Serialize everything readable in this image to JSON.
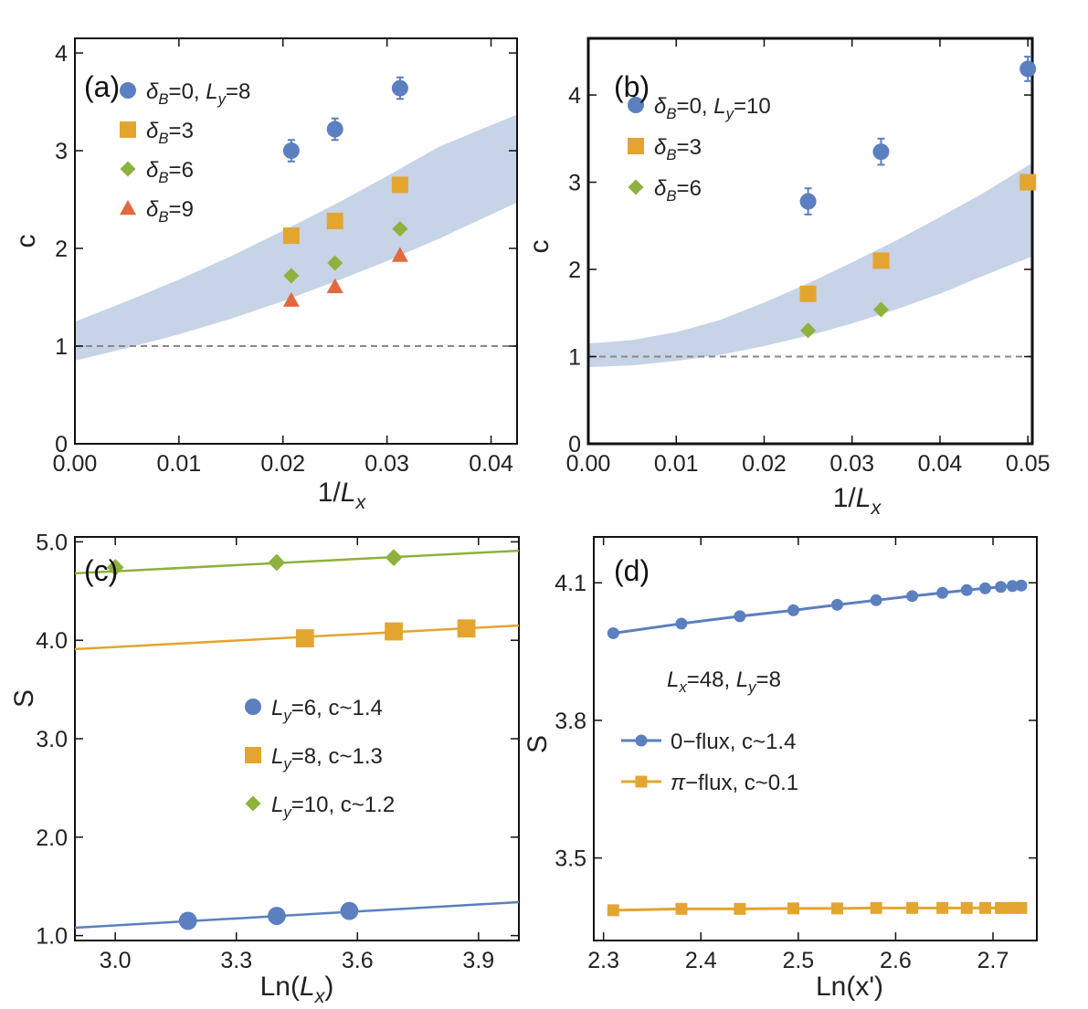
{
  "colors": {
    "blue": "#5b7fbf",
    "orange": "#e3a530",
    "green": "#8fb13d",
    "red": "#e2683e",
    "band": "#c7d3e6",
    "dash": "#888888",
    "axis": "#111111"
  },
  "chart_data": [
    {
      "id": "a",
      "type": "scatter",
      "tag": "(a)",
      "xlabel": "1/L_x",
      "ylabel": "c",
      "xlim": [
        0,
        0.0425
      ],
      "ylim": [
        0,
        4.15
      ],
      "xticks": [
        0.0,
        0.01,
        0.02,
        0.03,
        0.04
      ],
      "xtick_labels": [
        "0.00",
        "0.01",
        "0.02",
        "0.03",
        "0.04"
      ],
      "yticks": [
        0,
        1,
        2,
        3,
        4
      ],
      "ytick_labels": [
        "0",
        "1",
        "2",
        "3",
        "4"
      ],
      "reference_line": {
        "y": 1,
        "style": "dashed"
      },
      "band": {
        "x": [
          0,
          0.005,
          0.01,
          0.015,
          0.02,
          0.025,
          0.03,
          0.035,
          0.0425
        ],
        "lower": [
          0.85,
          0.98,
          1.12,
          1.28,
          1.46,
          1.66,
          1.87,
          2.1,
          2.47
        ],
        "upper": [
          1.25,
          1.46,
          1.68,
          1.92,
          2.18,
          2.45,
          2.74,
          3.04,
          3.37
        ]
      },
      "series": [
        {
          "name": "δB=0, Ly=8",
          "legend": {
            "lead": "δ",
            "sub": "B",
            "mid": "=0, ",
            "lead2": "L",
            "sub2": "y",
            "tail": "=8"
          },
          "marker": "circle",
          "color": "#5b7fbf",
          "x": [
            0.0208,
            0.025,
            0.03125
          ],
          "y": [
            3.0,
            3.22,
            3.64
          ],
          "yerr": [
            0.11,
            0.11,
            0.11
          ]
        },
        {
          "name": "δB=3",
          "legend": {
            "lead": "δ",
            "sub": "B",
            "tail": "=3"
          },
          "marker": "square",
          "color": "#e3a530",
          "x": [
            0.0208,
            0.025,
            0.03125
          ],
          "y": [
            2.13,
            2.28,
            2.65
          ]
        },
        {
          "name": "δB=6",
          "legend": {
            "lead": "δ",
            "sub": "B",
            "tail": "=6"
          },
          "marker": "diamond",
          "color": "#8fb13d",
          "x": [
            0.0208,
            0.025,
            0.03125
          ],
          "y": [
            1.72,
            1.85,
            2.2
          ]
        },
        {
          "name": "δB=9",
          "legend": {
            "lead": "δ",
            "sub": "B",
            "tail": "=9"
          },
          "marker": "triangle",
          "color": "#e2683e",
          "x": [
            0.0208,
            0.025,
            0.03125
          ],
          "y": [
            1.47,
            1.61,
            1.93
          ]
        }
      ]
    },
    {
      "id": "b",
      "type": "scatter",
      "tag": "(b)",
      "xlabel": "1/L_x",
      "ylabel": "c",
      "xlim": [
        0,
        0.0505
      ],
      "ylim": [
        0,
        4.65
      ],
      "xticks": [
        0.0,
        0.01,
        0.02,
        0.03,
        0.04,
        0.05
      ],
      "xtick_labels": [
        "0.00",
        "0.01",
        "0.02",
        "0.03",
        "0.04",
        "0.05"
      ],
      "yticks": [
        0,
        1,
        2,
        3,
        4
      ],
      "ytick_labels": [
        "0",
        "1",
        "2",
        "3",
        "4"
      ],
      "reference_line": {
        "y": 1,
        "style": "dashed"
      },
      "band": {
        "x": [
          0,
          0.005,
          0.01,
          0.015,
          0.02,
          0.025,
          0.03,
          0.035,
          0.04,
          0.045,
          0.0505
        ],
        "lower": [
          0.88,
          0.9,
          0.95,
          1.02,
          1.12,
          1.24,
          1.38,
          1.54,
          1.72,
          1.93,
          2.15
        ],
        "upper": [
          1.15,
          1.19,
          1.28,
          1.42,
          1.62,
          1.84,
          2.08,
          2.33,
          2.6,
          2.88,
          3.22
        ]
      },
      "series": [
        {
          "name": "δB=0, Ly=10",
          "legend": {
            "lead": "δ",
            "sub": "B",
            "mid": "=0, ",
            "lead2": "L",
            "sub2": "y",
            "tail": "=10"
          },
          "marker": "circle",
          "color": "#5b7fbf",
          "x": [
            0.025,
            0.0333,
            0.05
          ],
          "y": [
            2.78,
            3.35,
            4.3
          ],
          "yerr": [
            0.15,
            0.15,
            0.14
          ]
        },
        {
          "name": "δB=3",
          "legend": {
            "lead": "δ",
            "sub": "B",
            "tail": "=3"
          },
          "marker": "square",
          "color": "#e3a530",
          "x": [
            0.025,
            0.0333,
            0.05
          ],
          "y": [
            1.72,
            2.1,
            3.0
          ]
        },
        {
          "name": "δB=6",
          "legend": {
            "lead": "δ",
            "sub": "B",
            "tail": "=6"
          },
          "marker": "diamond",
          "color": "#8fb13d",
          "x": [
            0.025,
            0.0333
          ],
          "y": [
            1.3,
            1.54
          ]
        }
      ]
    },
    {
      "id": "c",
      "type": "scatter",
      "tag": "(c)",
      "xlabel": "Ln(L_x)",
      "ylabel": "S",
      "xlim": [
        2.9,
        4.0
      ],
      "ylim": [
        0.95,
        5.05
      ],
      "xticks": [
        3.0,
        3.3,
        3.6,
        3.9
      ],
      "xtick_labels": [
        "3.0",
        "3.3",
        "3.6",
        "3.9"
      ],
      "yticks": [
        1.0,
        2.0,
        3.0,
        4.0,
        5.0
      ],
      "ytick_labels": [
        "1.0",
        "2.0",
        "3.0",
        "4.0",
        "5.0"
      ],
      "series": [
        {
          "name": "Ly=6, c~1.4",
          "legend": {
            "lead": "L",
            "sub": "y",
            "tail": "=6, c~1.4"
          },
          "marker": "circle",
          "color": "#5b7fbf",
          "x": [
            3.18,
            3.4,
            3.58
          ],
          "y": [
            1.15,
            1.2,
            1.25
          ],
          "fit": {
            "x": [
              2.9,
              4.0
            ],
            "y": [
              1.08,
              1.34
            ]
          }
        },
        {
          "name": "Ly=8, c~1.3",
          "legend": {
            "lead": "L",
            "sub": "y",
            "tail": "=8, c~1.3"
          },
          "marker": "square",
          "color": "#e3a530",
          "x": [
            3.47,
            3.69,
            3.87
          ],
          "y": [
            4.02,
            4.09,
            4.12
          ],
          "fit": {
            "x": [
              2.9,
              4.0
            ],
            "y": [
              3.91,
              4.15
            ]
          }
        },
        {
          "name": "Ly=10, c~1.2",
          "legend": {
            "lead": "L",
            "sub": "y",
            "tail": "=10, c~1.2"
          },
          "marker": "diamond",
          "color": "#8fb13d",
          "x": [
            3.0,
            3.4,
            3.69
          ],
          "y": [
            4.74,
            4.79,
            4.84
          ],
          "fit": {
            "x": [
              2.9,
              4.0
            ],
            "y": [
              4.68,
              4.91
            ]
          }
        }
      ]
    },
    {
      "id": "d",
      "type": "line",
      "tag": "(d)",
      "annotation": {
        "lead": "L",
        "sub": "x",
        "mid": "=48, ",
        "lead2": "L",
        "sub2": "y",
        "tail": "=8"
      },
      "xlabel": "Ln(x')",
      "ylabel": "S",
      "xlim": [
        2.29,
        2.745
      ],
      "ylim": [
        3.32,
        4.2
      ],
      "xticks": [
        2.3,
        2.4,
        2.5,
        2.6,
        2.7
      ],
      "xtick_labels": [
        "2.3",
        "2.4",
        "2.5",
        "2.6",
        "2.7"
      ],
      "yticks": [
        3.5,
        3.8,
        4.1
      ],
      "ytick_labels": [
        "3.5",
        "3.8",
        "4.1"
      ],
      "series": [
        {
          "name": "0−flux, c~1.4",
          "legend": {
            "lead": "",
            "tail": "0−flux, c~1.4"
          },
          "marker": "circle",
          "color": "#5b7fbf",
          "x": [
            2.31,
            2.38,
            2.44,
            2.495,
            2.54,
            2.58,
            2.617,
            2.648,
            2.673,
            2.692,
            2.708,
            2.72,
            2.729
          ],
          "y": [
            3.99,
            4.011,
            4.027,
            4.04,
            4.052,
            4.062,
            4.071,
            4.078,
            4.084,
            4.088,
            4.091,
            4.093,
            4.094
          ]
        },
        {
          "name": "π−flux, c~0.1",
          "legend": {
            "lead": "π",
            "tail": "−flux, c~0.1"
          },
          "marker": "square",
          "color": "#e3a530",
          "x": [
            2.31,
            2.38,
            2.44,
            2.495,
            2.54,
            2.58,
            2.617,
            2.648,
            2.673,
            2.692,
            2.708,
            2.72,
            2.729
          ],
          "y": [
            3.386,
            3.389,
            3.389,
            3.39,
            3.39,
            3.391,
            3.391,
            3.391,
            3.391,
            3.391,
            3.391,
            3.391,
            3.391
          ]
        }
      ]
    }
  ]
}
